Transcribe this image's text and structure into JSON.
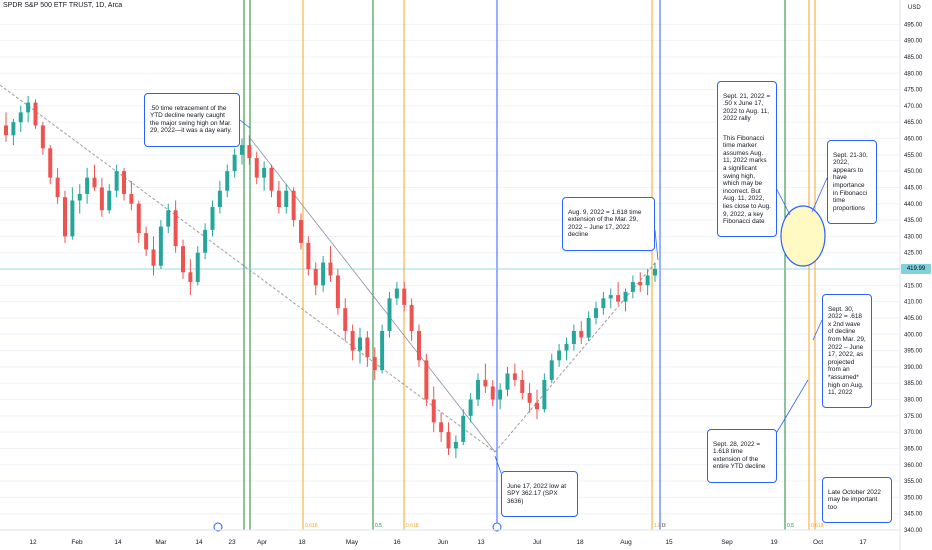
{
  "title": "SPDR S&P 500 ETF TRUST, 1D, Arca",
  "currency": "USD",
  "last_price": "419.99",
  "colors": {
    "up": "#26a69a",
    "down": "#ef5350",
    "vline_green": "#1b8a3a",
    "vline_orange": "#f5a623",
    "vline_blue": "#2962ff",
    "note_border": "#2962ff",
    "highlight_fill": "#fff9c4"
  },
  "chart_data": {
    "type": "candlestick",
    "title": "SPDR S&P 500 ETF TRUST, 1D, Arca",
    "ylabel": "USD",
    "ylim": [
      340,
      500
    ],
    "x_tick_labels": [
      "12",
      "Feb",
      "14",
      "Mar",
      "14",
      "23",
      "Apr",
      "18",
      "May",
      "16",
      "Jun",
      "13",
      "Jul",
      "18",
      "Aug",
      "15",
      "Sep",
      "19",
      "Oct",
      "17"
    ],
    "y_tick_labels": [
      "340.00",
      "345.00",
      "350.00",
      "355.00",
      "360.00",
      "365.00",
      "370.00",
      "375.00",
      "380.00",
      "385.00",
      "390.00",
      "395.00",
      "400.00",
      "405.00",
      "410.00",
      "415.00",
      "420.00",
      "425.00",
      "430.00",
      "435.00",
      "440.00",
      "445.00",
      "450.00",
      "455.00",
      "460.00",
      "465.00",
      "470.00",
      "475.00",
      "480.00",
      "485.00",
      "490.00",
      "495.00"
    ],
    "candles": [
      [
        464,
        468,
        459,
        461
      ],
      [
        461,
        466,
        458,
        465
      ],
      [
        465,
        470,
        462,
        468
      ],
      [
        468,
        473,
        465,
        471
      ],
      [
        471,
        472,
        463,
        464
      ],
      [
        464,
        465,
        455,
        457
      ],
      [
        457,
        458,
        446,
        448
      ],
      [
        448,
        451,
        440,
        442
      ],
      [
        442,
        444,
        428,
        430
      ],
      [
        430,
        445,
        429,
        441
      ],
      [
        441,
        446,
        437,
        443
      ],
      [
        443,
        451,
        440,
        448
      ],
      [
        448,
        452,
        444,
        445
      ],
      [
        445,
        448,
        436,
        438
      ],
      [
        438,
        446,
        437,
        444
      ],
      [
        444,
        452,
        442,
        450
      ],
      [
        450,
        451,
        441,
        443
      ],
      [
        443,
        447,
        438,
        440
      ],
      [
        440,
        441,
        428,
        431
      ],
      [
        431,
        433,
        424,
        426
      ],
      [
        426,
        430,
        418,
        421
      ],
      [
        421,
        435,
        420,
        433
      ],
      [
        433,
        440,
        431,
        438
      ],
      [
        438,
        441,
        425,
        427
      ],
      [
        427,
        429,
        417,
        419
      ],
      [
        419,
        423,
        412,
        416
      ],
      [
        416,
        427,
        415,
        425
      ],
      [
        425,
        434,
        423,
        432
      ],
      [
        432,
        441,
        430,
        439
      ],
      [
        439,
        447,
        437,
        444
      ],
      [
        444,
        452,
        442,
        450
      ],
      [
        450,
        457,
        448,
        455
      ],
      [
        455,
        460,
        452,
        458
      ],
      [
        458,
        461,
        452,
        454
      ],
      [
        454,
        456,
        446,
        448
      ],
      [
        448,
        453,
        444,
        451
      ],
      [
        451,
        452,
        442,
        444
      ],
      [
        444,
        447,
        437,
        439
      ],
      [
        439,
        446,
        437,
        444
      ],
      [
        444,
        445,
        433,
        435
      ],
      [
        435,
        437,
        426,
        428
      ],
      [
        428,
        430,
        418,
        420
      ],
      [
        420,
        422,
        412,
        415
      ],
      [
        415,
        424,
        413,
        422
      ],
      [
        422,
        427,
        416,
        418
      ],
      [
        418,
        420,
        406,
        408
      ],
      [
        408,
        411,
        398,
        401
      ],
      [
        401,
        403,
        392,
        395
      ],
      [
        395,
        402,
        391,
        399
      ],
      [
        399,
        401,
        390,
        393
      ],
      [
        393,
        396,
        386,
        389
      ],
      [
        389,
        403,
        388,
        401
      ],
      [
        401,
        413,
        399,
        411
      ],
      [
        411,
        416,
        409,
        414
      ],
      [
        414,
        416,
        407,
        409
      ],
      [
        409,
        411,
        398,
        401
      ],
      [
        401,
        403,
        390,
        392
      ],
      [
        392,
        394,
        378,
        380
      ],
      [
        380,
        384,
        370,
        373
      ],
      [
        373,
        376,
        367,
        370
      ],
      [
        370,
        373,
        363,
        365
      ],
      [
        365,
        369,
        362,
        367
      ],
      [
        367,
        377,
        366,
        375
      ],
      [
        375,
        382,
        373,
        380
      ],
      [
        380,
        388,
        378,
        386
      ],
      [
        386,
        391,
        382,
        384
      ],
      [
        384,
        386,
        378,
        380
      ],
      [
        380,
        385,
        377,
        383
      ],
      [
        383,
        390,
        381,
        388
      ],
      [
        388,
        391,
        384,
        386
      ],
      [
        386,
        389,
        380,
        382
      ],
      [
        382,
        385,
        376,
        379
      ],
      [
        379,
        383,
        374,
        377
      ],
      [
        377,
        388,
        376,
        386
      ],
      [
        386,
        394,
        385,
        392
      ],
      [
        392,
        397,
        390,
        395
      ],
      [
        395,
        399,
        392,
        397
      ],
      [
        397,
        403,
        395,
        401
      ],
      [
        401,
        404,
        397,
        399
      ],
      [
        399,
        407,
        398,
        405
      ],
      [
        405,
        410,
        403,
        408
      ],
      [
        408,
        413,
        406,
        411
      ],
      [
        411,
        414,
        408,
        412
      ],
      [
        412,
        416,
        409,
        410
      ],
      [
        410,
        414,
        407,
        413
      ],
      [
        413,
        418,
        411,
        416
      ],
      [
        416,
        419,
        413,
        415
      ],
      [
        415,
        420,
        412,
        418
      ],
      [
        418,
        422,
        416,
        420
      ]
    ],
    "vertical_markers": [
      {
        "label": "",
        "color": "green"
      },
      {
        "label": "",
        "color": "green"
      },
      {
        "label": "0.618",
        "color": "orange"
      },
      {
        "label": "0.5",
        "color": "green"
      },
      {
        "label": "0.618",
        "color": "orange"
      },
      {
        "label": "",
        "color": "blue"
      },
      {
        "label": "1.618",
        "color": "orange"
      },
      {
        "label": "0",
        "color": "blue"
      },
      {
        "label": "0.5",
        "color": "green"
      },
      {
        "label": "0.618",
        "color": "orange"
      },
      {
        "label": "",
        "color": "orange"
      },
      {
        "label": "2.618",
        "color": "orange"
      }
    ],
    "annotations": [
      ".50 time retracement of the YTD decline nearly caught the major swing high on Mar. 29, 2022—it was a day early.",
      "Aug. 9, 2022 = 1.618 time extension of the Mar. 29, 2022 – June 17, 2022 decline",
      "Sept. 21, 2022 = .50 x June 17, 2022 to Aug. 11, 2022 rally",
      "This Fibonacci time marker assumes Aug. 11, 2022 marks a significant swing high, which may be incorrect. But Aug. 11, 2022, lies close to Aug. 9, 2022, a key Fibonacci date",
      "Sept. 21-30, 2022, appears to have importance in Fibonacci time proportions",
      "Sept. 30, 2022 = .618 x 2nd wave of decline from Mar. 29, 2022 – June 17, 2022, as projected from an *assumed* high on Aug. 11, 2022",
      "Sept. 28, 2022 = 1.618 time extension of the entire YTD decline",
      "June 17, 2022 low at SPY 362.17 (SPX 3636)",
      "Late October 2022 may be important too"
    ]
  }
}
